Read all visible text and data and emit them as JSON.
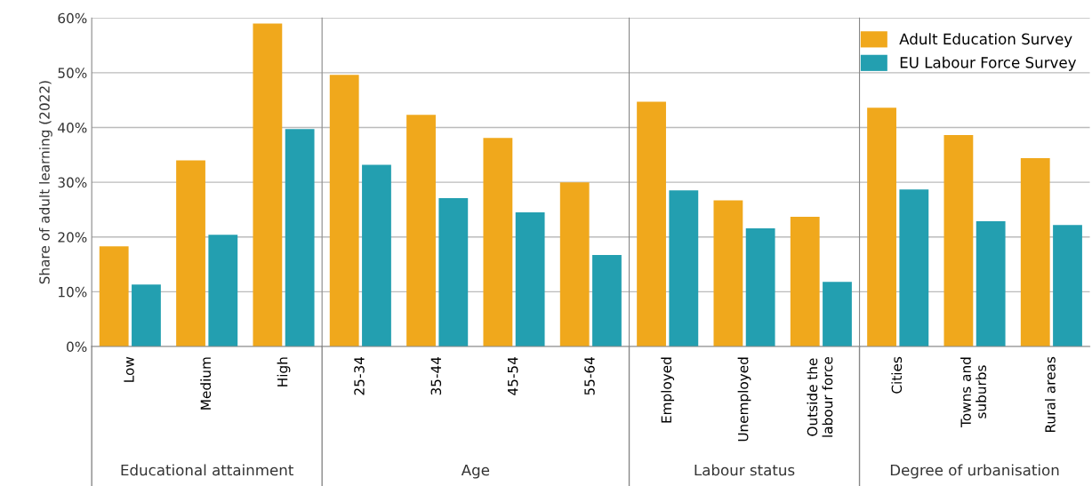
{
  "chart_data": [
    {
      "type": "bar",
      "ylabel": "Share of adult learning (2022)",
      "xlabel": "Educational attainment",
      "categories": [
        "Low",
        "Medium",
        "High"
      ],
      "series": [
        {
          "color": "#f0a81c",
          "values": [
            18.3,
            34.0,
            59.0
          ]
        },
        {
          "color": "#239fb0",
          "values": [
            11.3,
            20.4,
            39.7
          ]
        }
      ],
      "ylim": [
        0,
        60
      ],
      "yticks": [
        {
          "value": 0,
          "label": "0%"
        },
        {
          "value": 10,
          "label": "10%"
        },
        {
          "value": 20,
          "label": "20%"
        },
        {
          "value": 30,
          "label": "30%"
        },
        {
          "value": 40,
          "label": "40%"
        },
        {
          "value": 50,
          "label": "50%"
        },
        {
          "value": 60,
          "label": "60%"
        }
      ],
      "grid": "y"
    },
    {
      "type": "bar",
      "xlabel": "Age",
      "categories": [
        "25-34",
        "35-44",
        "45-54",
        "55-64"
      ],
      "series": [
        {
          "color": "#f0a81c",
          "values": [
            49.6,
            42.3,
            38.1,
            30.0
          ]
        },
        {
          "color": "#239fb0",
          "values": [
            33.2,
            27.1,
            24.5,
            16.7
          ]
        }
      ],
      "ylim": [
        0,
        60
      ],
      "yticks": [
        0,
        10,
        20,
        30,
        40,
        50,
        60
      ],
      "grid": "y",
      "tick_labels": "x"
    },
    {
      "type": "bar",
      "xlabel": "Labour status",
      "categories": [
        "Employed",
        "Unemployed",
        "Outside the\nlabour force"
      ],
      "series": [
        {
          "color": "#f0a81c",
          "values": [
            44.7,
            26.7,
            23.7
          ]
        },
        {
          "color": "#239fb0",
          "values": [
            28.5,
            21.6,
            11.8
          ]
        }
      ],
      "ylim": [
        0,
        60
      ],
      "yticks": [
        0,
        10,
        20,
        30,
        40,
        50,
        60
      ],
      "grid": "y",
      "tick_labels": "x"
    },
    {
      "type": "bar",
      "xlabel": "Degree of urbanisation",
      "categories": [
        "Cities",
        "Towns and\nsuburbs",
        "Rural areas"
      ],
      "series": [
        {
          "name": "Adult Education Survey",
          "color": "#f0a81c",
          "values": [
            43.6,
            38.6,
            34.4
          ]
        },
        {
          "name": "EU Labour Force Survey",
          "color": "#239fb0",
          "values": [
            28.7,
            22.9,
            22.2
          ]
        }
      ],
      "ylim": [
        0,
        60
      ],
      "yticks": [
        0,
        10,
        20,
        30,
        40,
        50,
        60
      ],
      "grid": "y",
      "tick_labels": "x",
      "legend": "top right"
    }
  ]
}
